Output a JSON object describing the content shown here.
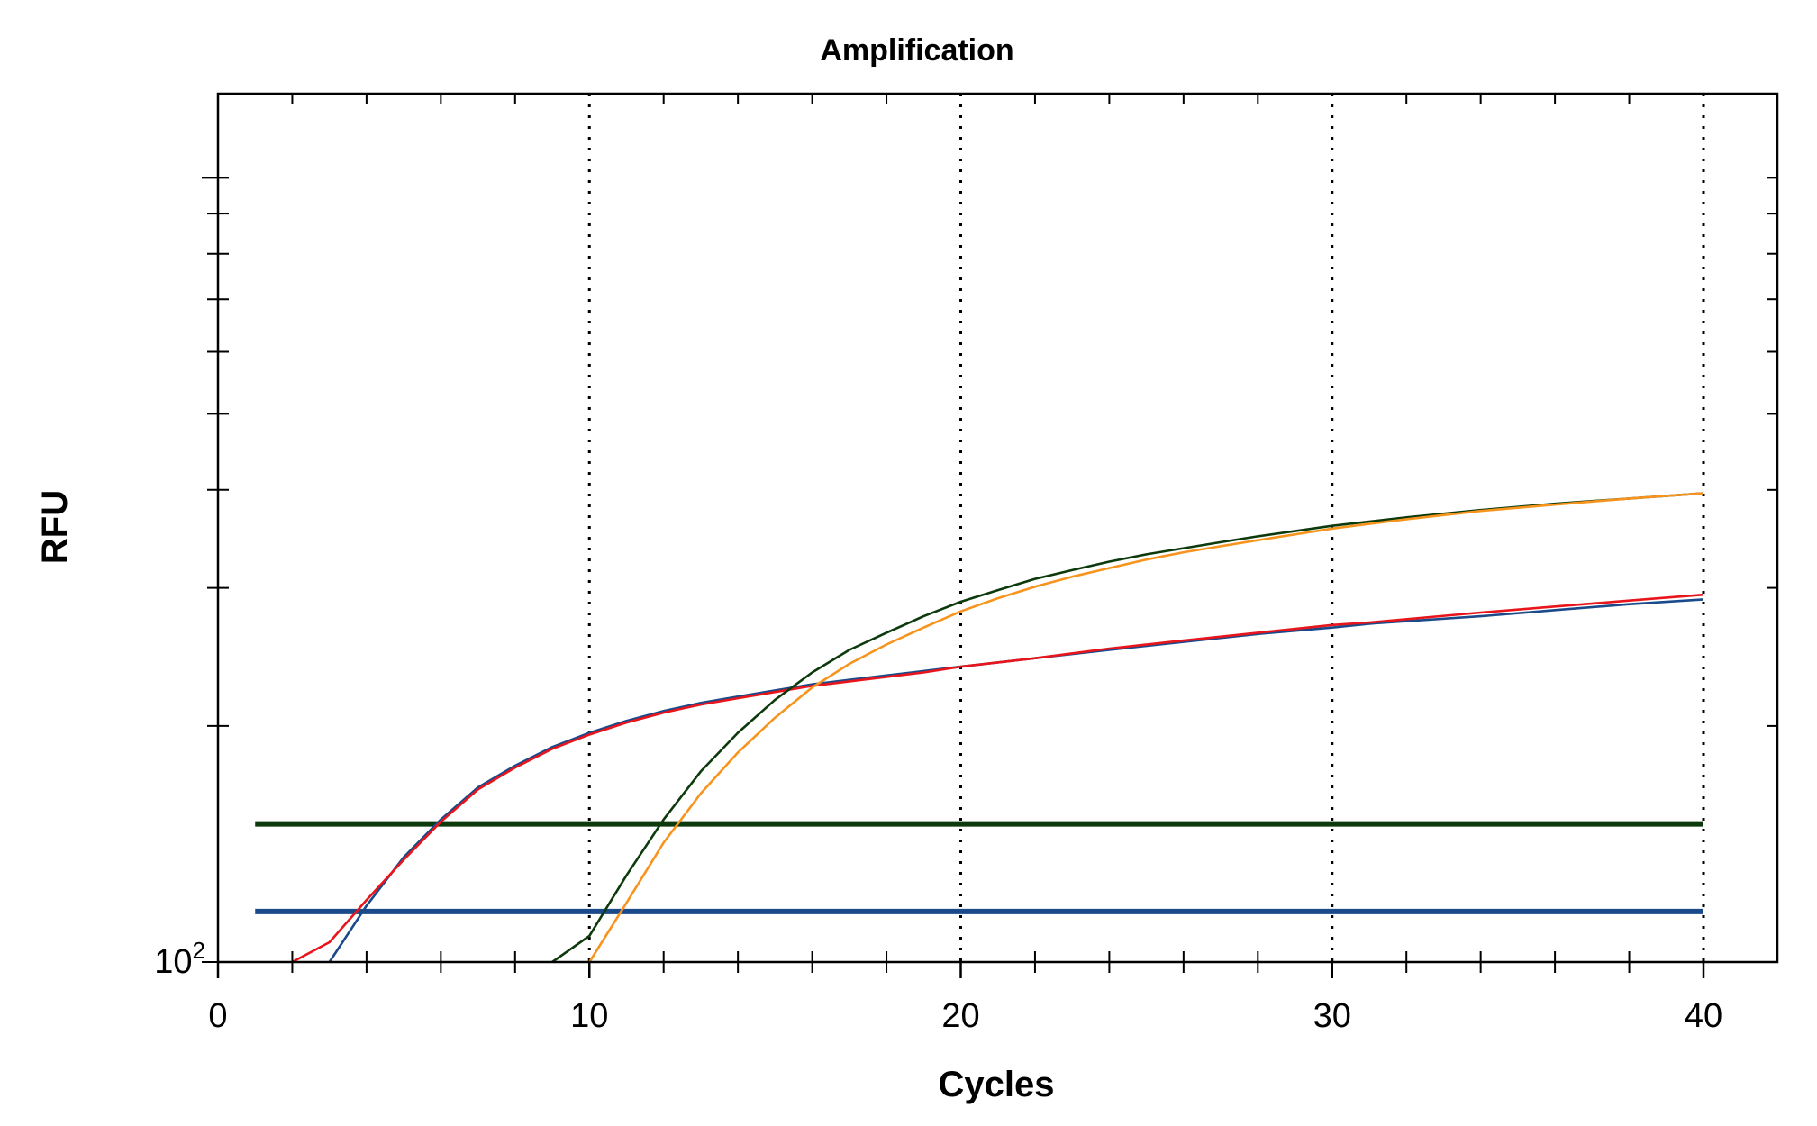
{
  "chart_data": {
    "type": "line",
    "title": "Amplification",
    "xlabel": "Cycles",
    "ylabel": "RFU",
    "xlim": [
      0,
      42
    ],
    "x_ticks": [
      0,
      10,
      20,
      30,
      40
    ],
    "x_tick_labels": [
      "0",
      "10",
      "20",
      "30",
      "40"
    ],
    "y_tick_label_base": "10",
    "y_tick_label_exp": "2",
    "y_scale": "log",
    "ylim": [
      100,
      1280
    ],
    "vertical_gridlines": [
      10,
      20,
      30,
      40
    ],
    "grid": "dotted vertical",
    "legend": "none",
    "series": [
      {
        "color": "#1a4a8a",
        "x": [
          3,
          4,
          5,
          6,
          7,
          8,
          9,
          10,
          11,
          12,
          13,
          14,
          15,
          16,
          17,
          18,
          19,
          20,
          22,
          24,
          26,
          28,
          30,
          31,
          34,
          36,
          38,
          40
        ],
        "y": [
          100,
          118,
          136,
          152,
          167,
          178,
          188,
          196,
          203,
          209,
          214,
          218,
          222,
          226,
          229,
          232,
          235,
          238,
          244,
          250,
          256,
          262,
          267,
          270,
          276,
          281,
          286,
          290
        ]
      },
      {
        "color": "#e8161c",
        "x": [
          2,
          3,
          4,
          5,
          6,
          7,
          8,
          9,
          10,
          11,
          12,
          13,
          14,
          15,
          16,
          17,
          18,
          19,
          20,
          22,
          24,
          26,
          28,
          30,
          31,
          34,
          36,
          38,
          40
        ],
        "y": [
          100,
          106,
          120,
          135,
          151,
          166,
          177,
          187,
          195,
          202,
          208,
          213,
          217,
          221,
          225,
          228,
          231,
          234,
          238,
          244,
          251,
          257,
          263,
          269,
          271,
          279,
          284,
          289,
          294
        ]
      },
      {
        "color": "#0d3a0d",
        "x": [
          9,
          10,
          11,
          12,
          13,
          14,
          15,
          16,
          17,
          18,
          19,
          20,
          21,
          22,
          23,
          24,
          25,
          26,
          27,
          28,
          30,
          32,
          34,
          36,
          38,
          40
        ],
        "y": [
          100,
          108,
          129,
          152,
          175,
          196,
          216,
          234,
          250,
          263,
          276,
          288,
          298,
          308,
          316,
          324,
          331,
          337,
          343,
          349,
          360,
          369,
          377,
          384,
          390,
          396
        ]
      },
      {
        "color": "#f7941d",
        "x": [
          10,
          11,
          12,
          13,
          14,
          15,
          16,
          17,
          18,
          19,
          20,
          21,
          22,
          23,
          24,
          25,
          26,
          27,
          28,
          30,
          32,
          34,
          36,
          38,
          40
        ],
        "y": [
          100,
          119,
          142,
          164,
          185,
          205,
          224,
          240,
          254,
          267,
          280,
          291,
          301,
          310,
          318,
          326,
          333,
          339,
          345,
          357,
          367,
          376,
          383,
          390,
          396
        ]
      }
    ],
    "thresholds": [
      {
        "color": "#0d3a0d",
        "y": 150,
        "x_range": [
          1,
          40
        ]
      },
      {
        "color": "#1a4a8a",
        "y": 116,
        "x_range": [
          1,
          40
        ]
      }
    ]
  }
}
